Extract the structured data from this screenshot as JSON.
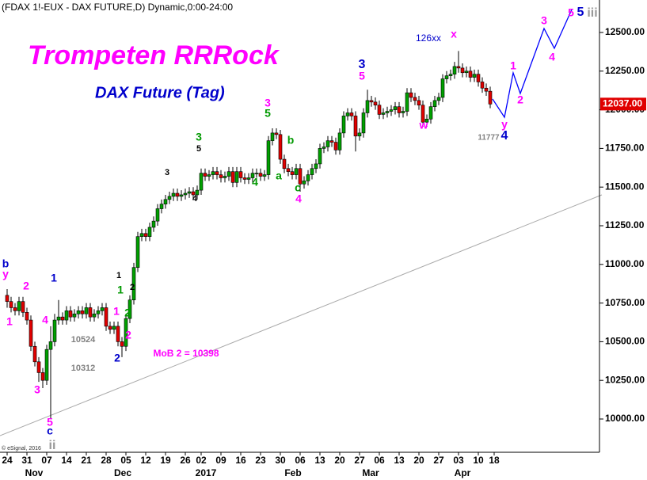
{
  "chart_data": {
    "type": "candlestick",
    "header": "(FDAX 1!-EUX - DAX FUTURE,D) Dynamic,0:00-24:00",
    "title": "Trompeten RRRock",
    "title_color": "#ff00ff",
    "subtitle": "DAX Future (Tag)",
    "subtitle_color": "#0000cc",
    "credit": "© eSignal, 2016",
    "up_color": "#00a000",
    "down_color": "#e00000",
    "categories": [
      "24",
      null,
      null,
      null,
      null,
      "31",
      null,
      null,
      null,
      null,
      "07",
      null,
      null,
      null,
      null,
      "14",
      null,
      null,
      null,
      null,
      "21",
      null,
      null,
      null,
      null,
      "28",
      null,
      null,
      null,
      null,
      "05",
      null,
      null,
      null,
      null,
      "12",
      null,
      null,
      null,
      null,
      "19",
      null,
      null,
      null,
      null,
      "26",
      null,
      null,
      null,
      "02",
      null,
      null,
      null,
      null,
      "09",
      null,
      null,
      null,
      null,
      "16",
      null,
      null,
      null,
      null,
      "23",
      null,
      null,
      null,
      null,
      "30",
      null,
      null,
      null,
      null,
      "06",
      null,
      null,
      null,
      null,
      "13",
      null,
      null,
      null,
      null,
      "20",
      null,
      null,
      null,
      null,
      "27",
      null,
      null,
      null,
      null,
      "06",
      null,
      null,
      null,
      null,
      "13",
      null,
      null,
      null,
      null,
      "20",
      null,
      null,
      null,
      null,
      "27",
      null,
      null,
      null,
      null,
      "03",
      null,
      null,
      null,
      null,
      "10",
      null,
      null,
      null,
      "18"
    ],
    "period_labels": [
      "Nov",
      "Dec",
      "2017",
      "Feb",
      "Mar",
      "Apr"
    ],
    "open": [
      10800,
      10760,
      10720,
      10700,
      10760,
      10690,
      10640,
      10470,
      10370,
      10300,
      10250,
      10450,
      10500,
      10640,
      10660,
      10640,
      10700,
      10660,
      10680,
      10700,
      10680,
      10720,
      10660,
      10680,
      10700,
      10720,
      10600,
      10580,
      10600,
      10500,
      10470,
      10650,
      10770,
      10980,
      11180,
      11200,
      11180,
      11240,
      11280,
      11360,
      11390,
      11420,
      11440,
      11460,
      11440,
      11450,
      11460,
      11470,
      11450,
      11480,
      11590,
      11570,
      11580,
      11600,
      11580,
      11560,
      11570,
      11600,
      11530,
      11600,
      11560,
      11550,
      11560,
      11590,
      11590,
      11570,
      11580,
      11800,
      11850,
      11840,
      11680,
      11620,
      11600,
      11580,
      11620,
      11520,
      11540,
      11580,
      11620,
      11650,
      11750,
      11760,
      11800,
      11790,
      11740,
      11850,
      11960,
      11980,
      11960,
      11830,
      11850,
      11980,
      12060,
      12050,
      12030,
      11970,
      11980,
      11990,
      12000,
      12020,
      11980,
      11990,
      12110,
      12080,
      12060,
      12030,
      11920,
      11940,
      12020,
      12060,
      12080,
      12200,
      12220,
      12230,
      12280,
      12270,
      12240,
      12250,
      12210,
      12230,
      12180,
      12140,
      12120,
      null
    ],
    "high": [
      10840,
      10790,
      10750,
      10790,
      10790,
      10720,
      10670,
      10500,
      10400,
      10330,
      10480,
      10600,
      10680,
      10770,
      10690,
      10730,
      10730,
      10710,
      10730,
      10730,
      10750,
      10750,
      10710,
      10730,
      10750,
      10750,
      10630,
      10630,
      10630,
      10530,
      10680,
      10800,
      11010,
      11210,
      11230,
      11230,
      11270,
      11310,
      11390,
      11420,
      11450,
      11470,
      11490,
      11490,
      11480,
      11490,
      11500,
      11500,
      11510,
      11620,
      11620,
      11610,
      11630,
      11630,
      11610,
      11600,
      11630,
      11630,
      11630,
      11630,
      11590,
      11590,
      11620,
      11620,
      11620,
      11610,
      11830,
      11880,
      11880,
      11870,
      11710,
      11650,
      11630,
      11650,
      11650,
      11570,
      11610,
      11650,
      11680,
      11780,
      11790,
      11830,
      11830,
      11820,
      11880,
      11990,
      12010,
      12010,
      11990,
      11880,
      12010,
      12130,
      12090,
      12080,
      12060,
      12010,
      12020,
      12030,
      12050,
      12050,
      12020,
      12140,
      12140,
      12110,
      12090,
      12060,
      11970,
      12050,
      12090,
      12110,
      12230,
      12250,
      12260,
      12310,
      12380,
      12300,
      12280,
      12280,
      12260,
      12260,
      12210,
      12170,
      12150,
      null
    ],
    "low": [
      10720,
      10690,
      10670,
      10670,
      10660,
      10610,
      10440,
      10340,
      10240,
      10200,
      10220,
      10000,
      10470,
      10610,
      10610,
      10610,
      10630,
      10630,
      10650,
      10650,
      10650,
      10630,
      10630,
      10650,
      10670,
      10570,
      10550,
      10550,
      10470,
      10400,
      10440,
      10620,
      10740,
      10950,
      11150,
      11150,
      11150,
      11210,
      11250,
      11330,
      11360,
      11390,
      11410,
      11410,
      11410,
      11420,
      11430,
      11420,
      11420,
      11450,
      11540,
      11540,
      11550,
      11550,
      11530,
      11530,
      11540,
      11500,
      11500,
      11530,
      11520,
      11520,
      11530,
      11560,
      11540,
      11540,
      11550,
      11770,
      11810,
      11650,
      11590,
      11570,
      11550,
      11550,
      11470,
      11490,
      11510,
      11550,
      11590,
      11620,
      11720,
      11730,
      11760,
      11710,
      11710,
      11820,
      11930,
      11930,
      11730,
      11800,
      11820,
      11950,
      12020,
      12000,
      11940,
      11940,
      11950,
      11960,
      11970,
      11950,
      11950,
      11960,
      12050,
      12030,
      12000,
      11890,
      11890,
      11910,
      11990,
      12030,
      12050,
      12170,
      12190,
      12200,
      12240,
      12210,
      12210,
      12180,
      12180,
      12150,
      12110,
      12090,
      12010,
      null
    ],
    "close": [
      10760,
      10720,
      10700,
      10760,
      10690,
      10640,
      10470,
      10370,
      10300,
      10250,
      10450,
      10500,
      10640,
      10660,
      10640,
      10700,
      10660,
      10680,
      10700,
      10680,
      10720,
      10660,
      10680,
      10700,
      10720,
      10600,
      10580,
      10600,
      10500,
      10470,
      10650,
      10770,
      10980,
      11180,
      11200,
      11180,
      11240,
      11280,
      11360,
      11390,
      11420,
      11440,
      11460,
      11440,
      11450,
      11460,
      11470,
      11450,
      11480,
      11590,
      11570,
      11580,
      11600,
      11580,
      11560,
      11570,
      11600,
      11530,
      11600,
      11560,
      11550,
      11560,
      11590,
      11590,
      11570,
      11580,
      11800,
      11850,
      11840,
      11680,
      11620,
      11600,
      11580,
      11620,
      11520,
      11540,
      11580,
      11620,
      11650,
      11750,
      11760,
      11800,
      11790,
      11740,
      11850,
      11960,
      11980,
      11960,
      11830,
      11850,
      11980,
      12060,
      12050,
      12030,
      11970,
      11980,
      11990,
      12000,
      12020,
      11980,
      11990,
      12110,
      12080,
      12060,
      12030,
      11920,
      11940,
      12020,
      12060,
      12080,
      12200,
      12220,
      12230,
      12280,
      12270,
      12240,
      12250,
      12210,
      12230,
      12180,
      12140,
      12120,
      12037,
      null
    ],
    "ylim": [
      9790,
      12710
    ],
    "yticks": [
      {
        "value": 10000,
        "label": "10000.00"
      },
      {
        "value": 10250,
        "label": "10250.00"
      },
      {
        "value": 10500,
        "label": "10500.00"
      },
      {
        "value": 10750,
        "label": "10750.00"
      },
      {
        "value": 11000,
        "label": "11000.00"
      },
      {
        "value": 11250,
        "label": "11250.00"
      },
      {
        "value": 11500,
        "label": "11500.00"
      },
      {
        "value": 11750,
        "label": "11750.00"
      },
      {
        "value": 12000,
        "label": "12000.00"
      },
      {
        "value": 12250,
        "label": "12250.00"
      },
      {
        "value": 12500,
        "label": "12500.00"
      }
    ],
    "last_price": {
      "value": 12037,
      "label": "12037.00"
    },
    "last_price_color": "#e00000",
    "annotations": [
      {
        "text": "b",
        "color": "#0000cc"
      },
      {
        "text": "y",
        "color": "#ff00ff"
      },
      {
        "text": "2",
        "color": "#ff00ff"
      },
      {
        "text": "1",
        "color": "#ff00ff"
      },
      {
        "text": "4",
        "color": "#ff00ff"
      },
      {
        "text": "1",
        "color": "#0000cc"
      },
      {
        "text": "3",
        "color": "#ff00ff"
      },
      {
        "text": "5",
        "color": "#ff00ff"
      },
      {
        "text": "c",
        "color": "#0000cc"
      },
      {
        "text": "ii",
        "color": "#999999"
      },
      {
        "text": "10524",
        "color": "#808080"
      },
      {
        "text": "10312",
        "color": "#808080"
      },
      {
        "text": "1",
        "color": "#000000"
      },
      {
        "text": "2",
        "color": "#000000"
      },
      {
        "text": "1",
        "color": "#009900"
      },
      {
        "text": "2",
        "color": "#009900"
      },
      {
        "text": "1",
        "color": "#ff00ff"
      },
      {
        "text": "2",
        "color": "#ff00ff"
      },
      {
        "text": "2",
        "color": "#0000cc"
      },
      {
        "text": "MoB 2 = 10398",
        "color": "#ff00ff"
      },
      {
        "text": "3",
        "color": "#000000"
      },
      {
        "text": "4",
        "color": "#000000"
      },
      {
        "text": "3",
        "color": "#009900"
      },
      {
        "text": "5",
        "color": "#000000"
      },
      {
        "text": "4",
        "color": "#009900"
      },
      {
        "text": "3",
        "color": "#ff00ff"
      },
      {
        "text": "5",
        "color": "#009900"
      },
      {
        "text": "b",
        "color": "#009900"
      },
      {
        "text": "a",
        "color": "#009900"
      },
      {
        "text": "c",
        "color": "#009900"
      },
      {
        "text": "4",
        "color": "#ff00ff"
      },
      {
        "text": "3",
        "color": "#0000cc"
      },
      {
        "text": "5",
        "color": "#ff00ff"
      },
      {
        "text": "w",
        "color": "#ff00ff"
      },
      {
        "text": "x",
        "color": "#ff00ff"
      },
      {
        "text": "126xx",
        "color": "#0000cc"
      },
      {
        "text": "y",
        "color": "#ff00ff"
      },
      {
        "text": "11777",
        "color": "#808080"
      },
      {
        "text": "4",
        "color": "#0000cc"
      },
      {
        "text": "1",
        "color": "#ff00ff"
      },
      {
        "text": "2",
        "color": "#ff00ff"
      },
      {
        "text": "3",
        "color": "#ff00ff"
      },
      {
        "text": "4",
        "color": "#ff00ff"
      },
      {
        "text": "5",
        "color": "#ff00ff"
      },
      {
        "text": "5",
        "color": "#0000cc"
      },
      {
        "text": "iii",
        "color": "#999999"
      }
    ]
  }
}
